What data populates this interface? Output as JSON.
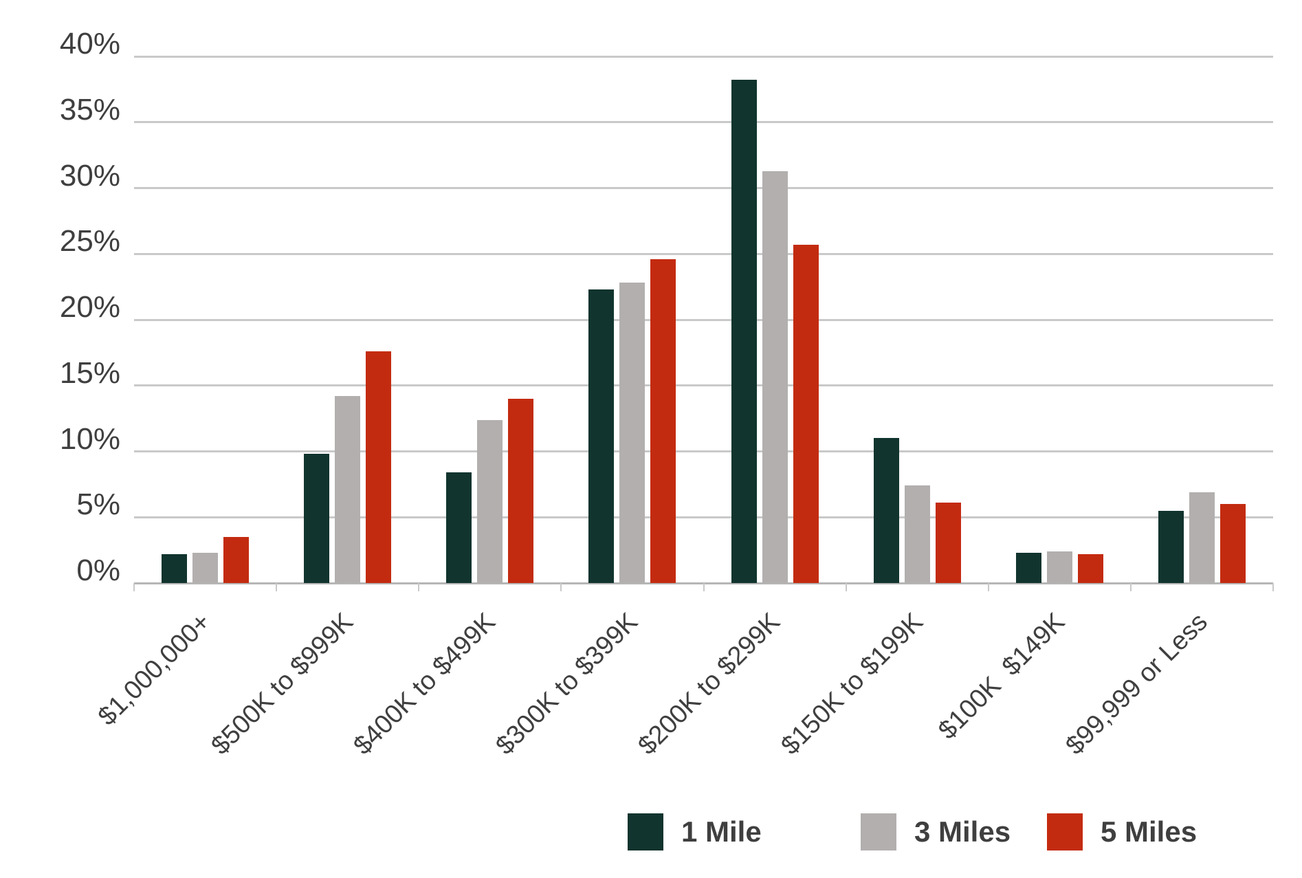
{
  "chart_data": {
    "type": "bar",
    "title": "",
    "categories": [
      "$1,000,000+",
      "$500K to $999K",
      "$400K to $499K",
      "$300K to $399K",
      "$200K to $299K",
      "$150K to $199K",
      "$100K  $149K",
      "$99,999 or Less"
    ],
    "series": [
      {
        "name": "1 Mile",
        "color": "#11342e",
        "values": [
          2.2,
          9.8,
          8.4,
          22.3,
          38.2,
          11.0,
          2.3,
          5.5
        ]
      },
      {
        "name": "3 Miles",
        "color": "#b2afae",
        "values": [
          2.3,
          14.2,
          12.4,
          22.8,
          31.3,
          7.4,
          2.4,
          6.9
        ]
      },
      {
        "name": "5 Miles",
        "color": "#c32b10",
        "values": [
          3.5,
          17.6,
          14.0,
          24.6,
          25.7,
          6.1,
          2.2,
          6.0
        ]
      }
    ],
    "ylim": [
      0,
      40
    ],
    "ytick_step": 5,
    "ytick_labels": [
      "0%",
      "5%",
      "10%",
      "15%",
      "20%",
      "25%",
      "30%",
      "35%",
      "40%"
    ],
    "grid": "horizontal",
    "legend_position": "bottom-right"
  },
  "colors": {
    "background": "#ffffff",
    "text": "#3f3f3f",
    "gridline": "#c9c9c9",
    "axis": "#b6b6b6"
  }
}
